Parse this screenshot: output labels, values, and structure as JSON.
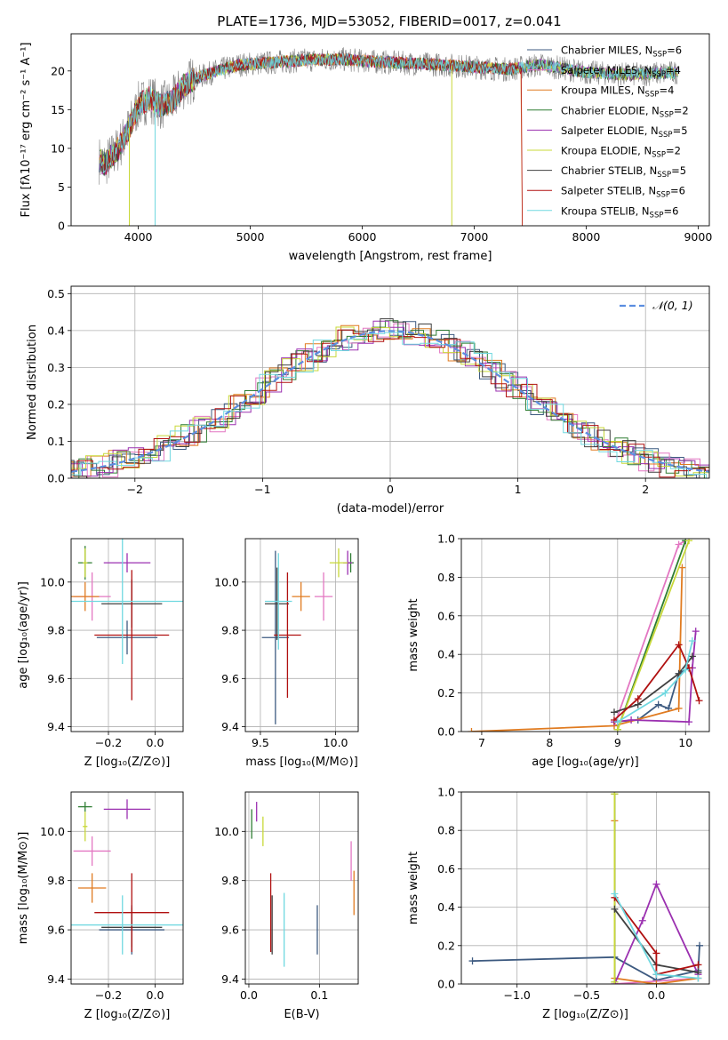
{
  "title": "PLATE=1736, MJD=53052, FIBERID=0017, z=0.041",
  "colors": {
    "Chabrier MILES": "#3d5a80",
    "Salpeter MILES": "#e377c2",
    "Kroupa MILES": "#e07b20",
    "Chabrier ELODIE": "#2e7d32",
    "Salpeter ELODIE": "#9b30b0",
    "Kroupa ELODIE": "#c8d838",
    "Chabrier STELIB": "#404040",
    "Salpeter STELIB": "#b01010",
    "Kroupa STELIB": "#70d8e0",
    "normal": "#5b8ee0",
    "data": "#808080"
  },
  "legend": [
    {
      "label": "Chabrier MILES, N",
      "sub": "SSP",
      "suffix": "=6"
    },
    {
      "label": "Salpeter MILES, N",
      "sub": "SSP",
      "suffix": "=4"
    },
    {
      "label": "Kroupa MILES, N",
      "sub": "SSP",
      "suffix": "=4"
    },
    {
      "label": "Chabrier ELODIE, N",
      "sub": "SSP",
      "suffix": "=2"
    },
    {
      "label": "Salpeter ELODIE, N",
      "sub": "SSP",
      "suffix": "=5"
    },
    {
      "label": "Kroupa ELODIE, N",
      "sub": "SSP",
      "suffix": "=2"
    },
    {
      "label": "Chabrier STELIB, N",
      "sub": "SSP",
      "suffix": "=5"
    },
    {
      "label": "Salpeter STELIB, N",
      "sub": "SSP",
      "suffix": "=6"
    },
    {
      "label": "Kroupa STELIB, N",
      "sub": "SSP",
      "suffix": "=6"
    }
  ],
  "chart_data": [
    {
      "type": "line",
      "panel": "spectrum",
      "xlabel": "wavelength [Angstrom, rest frame]",
      "ylabel": "Flux [fλ10⁻¹⁷ erg cm⁻² s⁻¹ A⁻¹]",
      "xlim": [
        3400,
        9100
      ],
      "ylim": [
        0,
        24.8
      ],
      "xticks": [
        4000,
        5000,
        6000,
        7000,
        8000,
        9000
      ],
      "yticks": [
        0,
        5,
        10,
        15,
        20
      ],
      "continuum_x": [
        3650,
        3700,
        3800,
        3900,
        4000,
        4100,
        4200,
        4300,
        4400,
        4500,
        4700,
        4900,
        5100,
        5300,
        5500,
        5800,
        6100,
        6400,
        6700,
        7000,
        7300,
        7600,
        8000,
        8400,
        8800
      ],
      "continuum_y": [
        8.5,
        8.0,
        9.5,
        12.0,
        15.5,
        16.5,
        15.5,
        16.0,
        18.0,
        19.0,
        20.0,
        20.8,
        21.0,
        21.2,
        21.4,
        21.5,
        21.2,
        21.0,
        20.8,
        20.5,
        20.2,
        20.8,
        19.8,
        19.5,
        19.8
      ]
    },
    {
      "type": "line",
      "panel": "residual-distribution",
      "xlabel": "(data-model)/error",
      "ylabel": "Normed distribution",
      "xlim": [
        -2.5,
        2.5
      ],
      "ylim": [
        0,
        0.52
      ],
      "xticks": [
        -2,
        -1,
        0,
        1,
        2
      ],
      "yticks": [
        0.0,
        0.1,
        0.2,
        0.3,
        0.4,
        0.5
      ],
      "legend_label": "𝒩(0, 1)",
      "normal": {
        "mean": 0,
        "sigma": 1
      }
    },
    {
      "type": "scatter",
      "panel": "age-vs-Z",
      "xlabel": "Z [log₁₀(Z/Z⊙)]",
      "ylabel": "age  [log₁₀(age/yr)]",
      "xlim": [
        -0.36,
        0.12
      ],
      "ylim": [
        9.38,
        10.18
      ],
      "xticks": [
        -0.2,
        0.0
      ],
      "yticks": [
        9.4,
        9.6,
        9.8,
        10.0
      ],
      "series": [
        {
          "name": "Chabrier MILES",
          "x": -0.12,
          "xerr": 0.13,
          "y": 9.77,
          "yerr": 0.07
        },
        {
          "name": "Salpeter MILES",
          "x": -0.27,
          "xerr": 0.08,
          "y": 9.94,
          "yerr": 0.1
        },
        {
          "name": "Kroupa MILES",
          "x": -0.3,
          "xerr": 0.06,
          "y": 9.94,
          "yerr": 0.06
        },
        {
          "name": "Chabrier ELODIE",
          "x": -0.3,
          "xerr": 0.03,
          "y": 10.08,
          "yerr": 0.07
        },
        {
          "name": "Salpeter ELODIE",
          "x": -0.12,
          "xerr": 0.1,
          "y": 10.08,
          "yerr": 0.04
        },
        {
          "name": "Kroupa ELODIE",
          "x": -0.3,
          "xerr": 0.01,
          "y": 10.08,
          "yerr": 0.06
        },
        {
          "name": "Chabrier STELIB",
          "x": -0.1,
          "xerr": 0.13,
          "y": 9.91,
          "yerr": 0.1
        },
        {
          "name": "Salpeter STELIB",
          "x": -0.1,
          "xerr": 0.16,
          "y": 9.78,
          "yerr": 0.27
        },
        {
          "name": "Kroupa STELIB",
          "x": -0.14,
          "xerr": 0.26,
          "y": 9.92,
          "yerr": 0.26
        }
      ]
    },
    {
      "type": "scatter",
      "panel": "age-vs-mass",
      "xlabel": "mass [log₁₀(M/M⊙)]",
      "xlim": [
        9.4,
        10.15
      ],
      "ylim": [
        9.38,
        10.18
      ],
      "xticks": [
        9.5,
        10.0
      ],
      "yticks": [
        9.4,
        9.6,
        9.8,
        10.0
      ],
      "series": [
        {
          "name": "Chabrier MILES",
          "x": 9.6,
          "xerr": 0.09,
          "y": 9.77,
          "yerr": 0.36
        },
        {
          "name": "Salpeter MILES",
          "x": 9.92,
          "xerr": 0.06,
          "y": 9.94,
          "yerr": 0.1
        },
        {
          "name": "Kroupa MILES",
          "x": 9.77,
          "xerr": 0.06,
          "y": 9.94,
          "yerr": 0.06
        },
        {
          "name": "Chabrier ELODIE",
          "x": 10.1,
          "xerr": 0.02,
          "y": 10.08,
          "yerr": 0.04
        },
        {
          "name": "Salpeter ELODIE",
          "x": 10.08,
          "xerr": 0.03,
          "y": 10.08,
          "yerr": 0.05
        },
        {
          "name": "Kroupa ELODIE",
          "x": 10.02,
          "xerr": 0.06,
          "y": 10.08,
          "yerr": 0.06
        },
        {
          "name": "Chabrier STELIB",
          "x": 9.61,
          "xerr": 0.08,
          "y": 9.91,
          "yerr": 0.15
        },
        {
          "name": "Salpeter STELIB",
          "x": 9.68,
          "xerr": 0.09,
          "y": 9.78,
          "yerr": 0.26
        },
        {
          "name": "Kroupa STELIB",
          "x": 9.62,
          "xerr": 0.09,
          "y": 9.92,
          "yerr": 0.2
        }
      ]
    },
    {
      "type": "line",
      "panel": "mass-weight-vs-age",
      "xlabel": "age  [log₁₀(age/yr)]",
      "ylabel": "mass weight",
      "xlim": [
        6.7,
        10.35
      ],
      "ylim": [
        0,
        1.0
      ],
      "xticks": [
        7,
        8,
        9,
        10
      ],
      "yticks": [
        0.0,
        0.2,
        0.4,
        0.6,
        0.8,
        1.0
      ],
      "series": [
        {
          "name": "Chabrier MILES",
          "x": [
            8.95,
            9.3,
            9.6,
            9.75,
            9.9,
            10.05
          ],
          "y": [
            0.05,
            0.06,
            0.14,
            0.12,
            0.3,
            0.33
          ]
        },
        {
          "name": "Salpeter MILES",
          "x": [
            8.95,
            9.9,
            10.0
          ],
          "y": [
            0.03,
            0.97,
            0.99
          ]
        },
        {
          "name": "Kroupa MILES",
          "x": [
            6.85,
            8.95,
            9.9,
            9.95
          ],
          "y": [
            0.0,
            0.03,
            0.12,
            0.85
          ]
        },
        {
          "name": "Chabrier ELODIE",
          "x": [
            9.0,
            10.0
          ],
          "y": [
            0.01,
            0.99
          ]
        },
        {
          "name": "Salpeter ELODIE",
          "x": [
            8.95,
            9.2,
            10.05,
            10.1,
            10.15
          ],
          "y": [
            0.05,
            0.06,
            0.05,
            0.33,
            0.52
          ]
        },
        {
          "name": "Kroupa ELODIE",
          "x": [
            9.0,
            10.05
          ],
          "y": [
            0.01,
            0.99
          ]
        },
        {
          "name": "Chabrier STELIB",
          "x": [
            8.95,
            9.3,
            9.9,
            10.1
          ],
          "y": [
            0.1,
            0.14,
            0.3,
            0.39
          ]
        },
        {
          "name": "Salpeter STELIB",
          "x": [
            8.95,
            9.3,
            9.9,
            10.05,
            10.2
          ],
          "y": [
            0.06,
            0.17,
            0.45,
            0.33,
            0.16
          ]
        },
        {
          "name": "Kroupa STELIB",
          "x": [
            9.0,
            9.7,
            10.0,
            10.1
          ],
          "y": [
            0.05,
            0.2,
            0.32,
            0.47
          ]
        }
      ]
    },
    {
      "type": "scatter",
      "panel": "mass-vs-Z",
      "xlabel": "Z [log₁₀(Z/Z⊙)]",
      "ylabel": "mass [log₁₀(M/M⊙)]",
      "xlim": [
        -0.36,
        0.12
      ],
      "ylim": [
        9.38,
        10.16
      ],
      "xticks": [
        -0.2,
        0.0
      ],
      "yticks": [
        9.4,
        9.6,
        9.8,
        10.0
      ],
      "series": [
        {
          "name": "Chabrier MILES",
          "x": -0.1,
          "xerr": 0.14,
          "y": 9.6,
          "yerr": 0.1
        },
        {
          "name": "Salpeter MILES",
          "x": -0.27,
          "xerr": 0.08,
          "y": 9.92,
          "yerr": 0.06
        },
        {
          "name": "Kroupa MILES",
          "x": -0.27,
          "xerr": 0.06,
          "y": 9.77,
          "yerr": 0.06
        },
        {
          "name": "Chabrier ELODIE",
          "x": -0.3,
          "xerr": 0.03,
          "y": 10.1,
          "yerr": 0.02
        },
        {
          "name": "Salpeter ELODIE",
          "x": -0.12,
          "xerr": 0.1,
          "y": 10.09,
          "yerr": 0.04
        },
        {
          "name": "Kroupa ELODIE",
          "x": -0.3,
          "xerr": 0.01,
          "y": 10.02,
          "yerr": 0.06
        },
        {
          "name": "Chabrier STELIB",
          "x": -0.1,
          "xerr": 0.13,
          "y": 9.61,
          "yerr": 0.08
        },
        {
          "name": "Salpeter STELIB",
          "x": -0.1,
          "xerr": 0.16,
          "y": 9.67,
          "yerr": 0.16
        },
        {
          "name": "Kroupa STELIB",
          "x": -0.14,
          "xerr": 0.26,
          "y": 9.62,
          "yerr": 0.12
        }
      ]
    },
    {
      "type": "scatter",
      "panel": "mass-vs-EBV",
      "xlabel": "E(B-V)",
      "xlim": [
        -0.005,
        0.155
      ],
      "ylim": [
        9.38,
        10.16
      ],
      "xticks": [
        0.0,
        0.1
      ],
      "xticklabels": [
        "0.0",
        "0.1"
      ],
      "yticks": [
        9.4,
        9.6,
        9.8,
        10.0
      ],
      "series": [
        {
          "name": "Chabrier MILES",
          "x": 0.097,
          "yerr": 0.1,
          "y": 9.6
        },
        {
          "name": "Salpeter MILES",
          "x": 0.145,
          "yerr": 0.08,
          "y": 9.88
        },
        {
          "name": "Kroupa MILES",
          "x": 0.149,
          "yerr": 0.09,
          "y": 9.75
        },
        {
          "name": "Chabrier ELODIE",
          "x": 0.004,
          "yerr": 0.06,
          "y": 10.03
        },
        {
          "name": "Salpeter ELODIE",
          "x": 0.011,
          "yerr": 0.04,
          "y": 10.08
        },
        {
          "name": "Kroupa ELODIE",
          "x": 0.02,
          "yerr": 0.06,
          "y": 10.0
        },
        {
          "name": "Chabrier STELIB",
          "x": 0.033,
          "yerr": 0.12,
          "y": 9.62
        },
        {
          "name": "Salpeter STELIB",
          "x": 0.031,
          "yerr": 0.16,
          "y": 9.67
        },
        {
          "name": "Kroupa STELIB",
          "x": 0.05,
          "yerr": 0.15,
          "y": 9.6
        }
      ]
    },
    {
      "type": "line",
      "panel": "mass-weight-vs-Z",
      "xlabel": "Z [log₁₀(Z/Z⊙)]",
      "ylabel": "mass weight",
      "xlim": [
        -1.4,
        0.38
      ],
      "ylim": [
        0,
        1.0
      ],
      "xticks": [
        -1.0,
        -0.5,
        0.0
      ],
      "yticks": [
        0.0,
        0.2,
        0.4,
        0.6,
        0.8,
        1.0
      ],
      "series": [
        {
          "name": "Chabrier MILES",
          "x": [
            -1.32,
            -0.3,
            0.0,
            0.3,
            0.31
          ],
          "y": [
            0.12,
            0.14,
            0.02,
            0.07,
            0.2
          ]
        },
        {
          "name": "Salpeter MILES",
          "x": [
            -0.3,
            -0.3,
            0.3
          ],
          "y": [
            0.99,
            0.0,
            0.03
          ]
        },
        {
          "name": "Kroupa MILES",
          "x": [
            -0.3,
            -0.3,
            0.0,
            0.3
          ],
          "y": [
            0.85,
            0.03,
            0.0,
            0.03
          ]
        },
        {
          "name": "Chabrier ELODIE",
          "x": [
            -0.3,
            -0.3
          ],
          "y": [
            0.99,
            0.01
          ]
        },
        {
          "name": "Salpeter ELODIE",
          "x": [
            -0.3,
            -0.1,
            0.0,
            0.3
          ],
          "y": [
            0.0,
            0.33,
            0.52,
            0.05
          ]
        },
        {
          "name": "Kroupa ELODIE",
          "x": [
            -0.3,
            -0.3
          ],
          "y": [
            0.99,
            0.01
          ]
        },
        {
          "name": "Chabrier STELIB",
          "x": [
            -0.3,
            0.0,
            0.3
          ],
          "y": [
            0.39,
            0.1,
            0.06
          ]
        },
        {
          "name": "Salpeter STELIB",
          "x": [
            -0.3,
            0.0,
            0.0,
            0.3
          ],
          "y": [
            0.45,
            0.16,
            0.05,
            0.1
          ]
        },
        {
          "name": "Kroupa STELIB",
          "x": [
            -0.3,
            0.0,
            0.3
          ],
          "y": [
            0.47,
            0.05,
            0.03
          ]
        }
      ]
    }
  ]
}
